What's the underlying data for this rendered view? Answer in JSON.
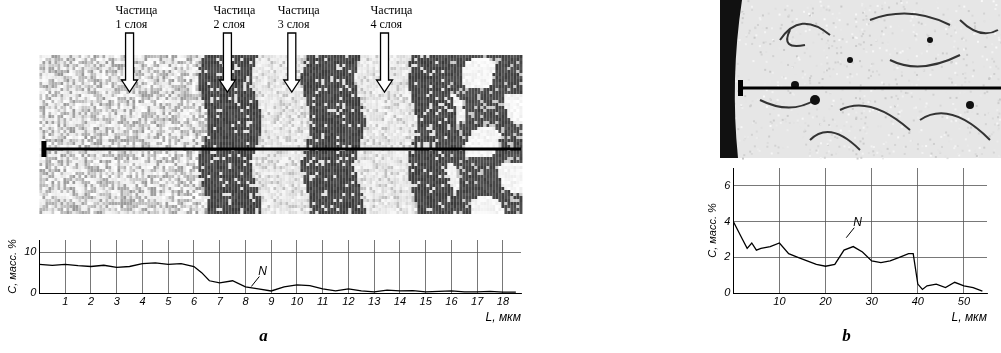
{
  "chart_data": [
    {
      "type": "line",
      "title": "a",
      "x_label": "L, мкм",
      "y_label": "C, масс. %",
      "color": "#000000",
      "grid": true,
      "x": [
        0,
        0.5,
        1,
        1.5,
        2,
        2.5,
        3,
        3.5,
        4,
        4.5,
        5,
        5.5,
        6,
        6.3,
        6.6,
        7,
        7.5,
        8,
        8.5,
        9,
        9.5,
        10,
        10.5,
        11,
        11.5,
        12,
        12.5,
        13,
        13.5,
        14,
        14.5,
        15,
        15.5,
        16,
        16.5,
        17,
        17.5,
        18,
        18.5
      ],
      "values": [
        7,
        6.8,
        7,
        6.7,
        6.5,
        6.8,
        6.3,
        6.5,
        7.2,
        7.4,
        7,
        7.2,
        6.5,
        5,
        3,
        2.5,
        3,
        1.5,
        1,
        0.5,
        1.5,
        2,
        1.8,
        1,
        0.5,
        1,
        0.5,
        0.3,
        0.7,
        0.5,
        0.6,
        0.3,
        0.4,
        0.5,
        0.3,
        0.3,
        0.4,
        0.2,
        0.2
      ],
      "xlim": [
        0,
        18.7
      ],
      "xticks": [
        1,
        2,
        3,
        4,
        5,
        6,
        7,
        8,
        9,
        10,
        11,
        12,
        13,
        14,
        15,
        16,
        17,
        18
      ],
      "ylim": [
        0,
        13
      ],
      "yticks": [
        0,
        10
      ],
      "annotations": [
        {
          "text": "Частица 1 слоя",
          "x": 3.5
        },
        {
          "text": "Частица 2 слоя",
          "x": 7.3
        },
        {
          "text": "Частица 3 слоя",
          "x": 9.8
        },
        {
          "text": "Частица 4 слоя",
          "x": 13.4
        },
        {
          "text": "N",
          "x": 8.5,
          "y": 3.8
        }
      ]
    },
    {
      "type": "line",
      "title": "b",
      "x_label": "L, мкм",
      "y_label": "C, масс. %",
      "color": "#000000",
      "grid": true,
      "x": [
        0,
        1,
        2,
        3,
        4,
        5,
        6,
        8,
        10,
        12,
        14,
        16,
        18,
        20,
        22,
        24,
        26,
        28,
        30,
        32,
        34,
        36,
        38,
        39,
        40,
        41,
        42,
        44,
        46,
        48,
        50,
        52,
        54
      ],
      "values": [
        4,
        3.5,
        3,
        2.5,
        2.8,
        2.4,
        2.5,
        2.6,
        2.8,
        2.2,
        2,
        1.8,
        1.6,
        1.5,
        1.6,
        2.4,
        2.6,
        2.3,
        1.8,
        1.7,
        1.8,
        2,
        2.2,
        2.2,
        0.5,
        0.2,
        0.4,
        0.5,
        0.3,
        0.6,
        0.4,
        0.3,
        0.1
      ],
      "xlim": [
        0,
        55
      ],
      "xticks": [
        10,
        20,
        30,
        40,
        50
      ],
      "ylim": [
        0,
        7
      ],
      "yticks": [
        0,
        2,
        4,
        6
      ],
      "annotations": [
        {
          "text": "N",
          "x": 26,
          "y": 3.6
        }
      ]
    }
  ]
}
